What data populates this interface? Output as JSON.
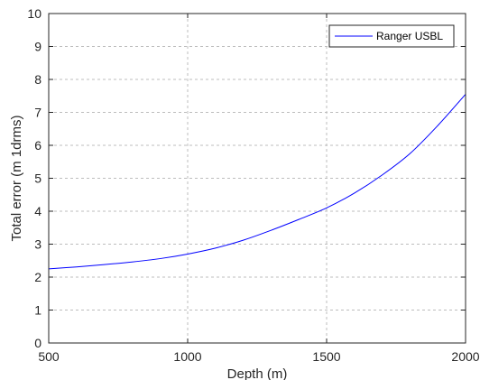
{
  "chart_data": {
    "type": "line",
    "title": "",
    "xlabel": "Depth (m)",
    "ylabel": "Total error (m 1drms)",
    "xlim": [
      500,
      2000
    ],
    "ylim": [
      0,
      10
    ],
    "xticks": [
      500,
      1000,
      1500,
      2000
    ],
    "yticks": [
      0,
      1,
      2,
      3,
      4,
      5,
      6,
      7,
      8,
      9,
      10
    ],
    "grid": true,
    "legend_position": "top-right",
    "series": [
      {
        "name": "Ranger USBL",
        "color": "#0000ff",
        "x": [
          500,
          600,
          700,
          800,
          900,
          1000,
          1100,
          1200,
          1300,
          1400,
          1500,
          1600,
          1700,
          1800,
          1900,
          2000
        ],
        "y": [
          2.25,
          2.31,
          2.38,
          2.46,
          2.56,
          2.7,
          2.88,
          3.12,
          3.42,
          3.75,
          4.1,
          4.55,
          5.1,
          5.75,
          6.6,
          7.55
        ]
      }
    ]
  }
}
